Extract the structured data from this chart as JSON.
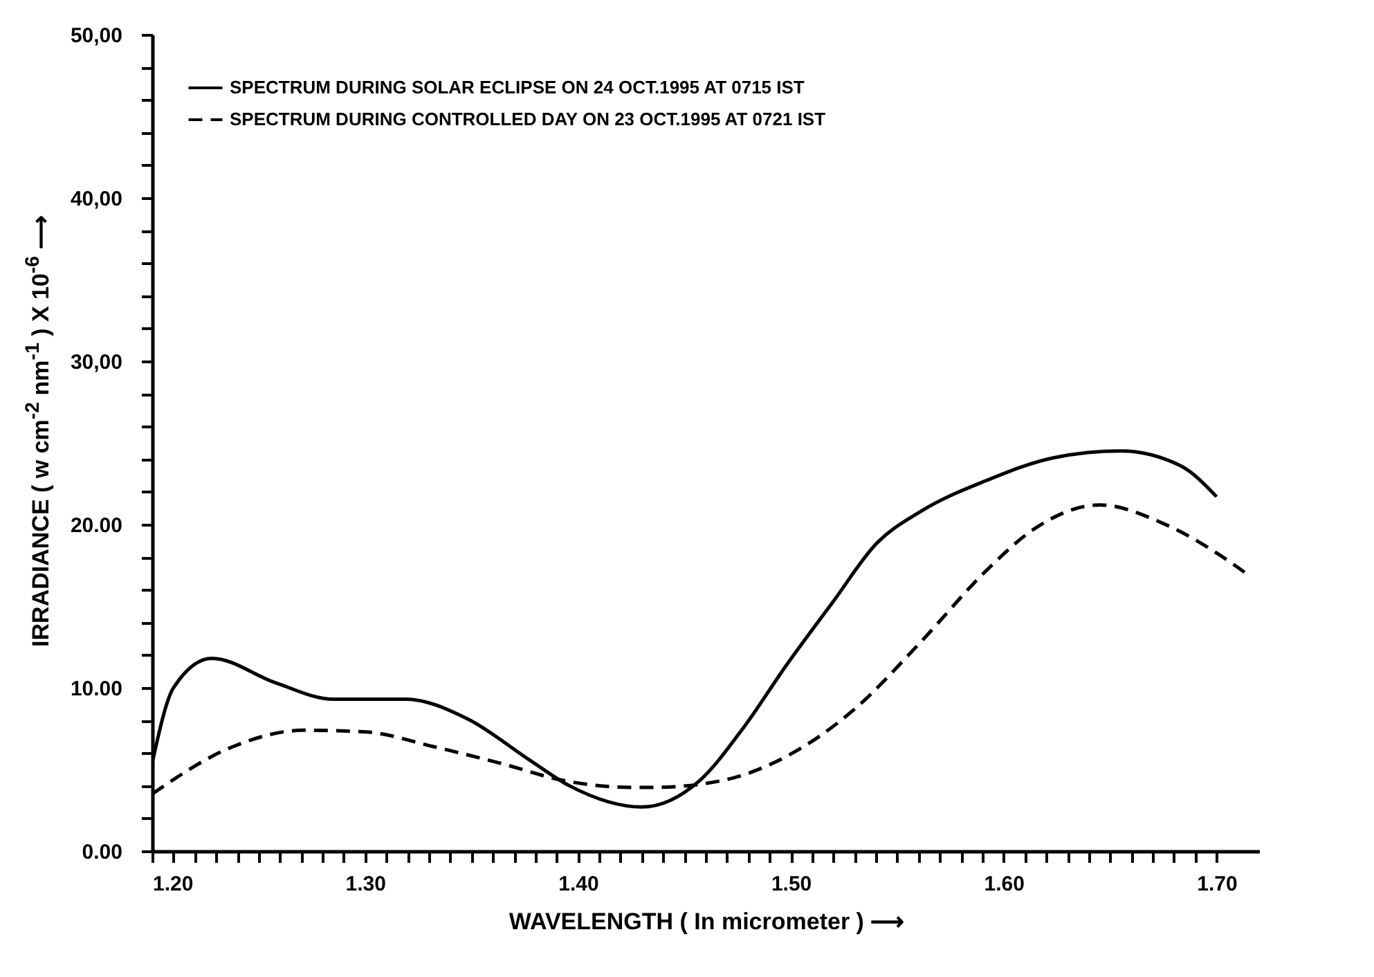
{
  "chart_data": {
    "type": "line",
    "xlabel": "WAVELENGTH ( In micrometer ) ⟶",
    "ylabel": "IRRADIANCE ( w cm$^{-2}$ nm$^{-1}$ ) X 10$^{-6}$ ⟶",
    "xlim": [
      1.2,
      1.72
    ],
    "ylim": [
      0,
      50
    ],
    "xticks": [
      {
        "value": 1.2,
        "label": "1.20"
      },
      {
        "value": 1.21,
        "label": null
      },
      {
        "value": 1.22,
        "label": null
      },
      {
        "value": 1.23,
        "label": null
      },
      {
        "value": 1.24,
        "label": null
      },
      {
        "value": 1.25,
        "label": null
      },
      {
        "value": 1.26,
        "label": null
      },
      {
        "value": 1.27,
        "label": null
      },
      {
        "value": 1.28,
        "label": null
      },
      {
        "value": 1.29,
        "label": null
      },
      {
        "value": 1.3,
        "label": "1.30"
      },
      {
        "value": 1.31,
        "label": null
      },
      {
        "value": 1.32,
        "label": null
      },
      {
        "value": 1.33,
        "label": null
      },
      {
        "value": 1.34,
        "label": null
      },
      {
        "value": 1.35,
        "label": null
      },
      {
        "value": 1.36,
        "label": null
      },
      {
        "value": 1.37,
        "label": null
      },
      {
        "value": 1.38,
        "label": null
      },
      {
        "value": 1.39,
        "label": null
      },
      {
        "value": 1.4,
        "label": "1.40"
      },
      {
        "value": 1.41,
        "label": null
      },
      {
        "value": 1.42,
        "label": null
      },
      {
        "value": 1.43,
        "label": null
      },
      {
        "value": 1.44,
        "label": null
      },
      {
        "value": 1.45,
        "label": null
      },
      {
        "value": 1.46,
        "label": null
      },
      {
        "value": 1.47,
        "label": null
      },
      {
        "value": 1.48,
        "label": null
      },
      {
        "value": 1.49,
        "label": null
      },
      {
        "value": 1.5,
        "label": "1.50"
      },
      {
        "value": 1.51,
        "label": null
      },
      {
        "value": 1.52,
        "label": null
      },
      {
        "value": 1.53,
        "label": null
      },
      {
        "value": 1.54,
        "label": null
      },
      {
        "value": 1.55,
        "label": null
      },
      {
        "value": 1.56,
        "label": null
      },
      {
        "value": 1.57,
        "label": null
      },
      {
        "value": 1.58,
        "label": null
      },
      {
        "value": 1.59,
        "label": null
      },
      {
        "value": 1.6,
        "label": "1.60"
      },
      {
        "value": 1.61,
        "label": null
      },
      {
        "value": 1.62,
        "label": null
      },
      {
        "value": 1.63,
        "label": null
      },
      {
        "value": 1.64,
        "label": null
      },
      {
        "value": 1.65,
        "label": null
      },
      {
        "value": 1.66,
        "label": null
      },
      {
        "value": 1.67,
        "label": null
      },
      {
        "value": 1.68,
        "label": null
      },
      {
        "value": 1.69,
        "label": null
      },
      {
        "value": 1.7,
        "label": "1.70"
      }
    ],
    "yticks": [
      {
        "value": 0,
        "label": "0.00"
      },
      {
        "value": 2,
        "label": null
      },
      {
        "value": 4,
        "label": null
      },
      {
        "value": 6,
        "label": null
      },
      {
        "value": 8,
        "label": null
      },
      {
        "value": 10,
        "label": "10.00"
      },
      {
        "value": 12,
        "label": null
      },
      {
        "value": 14,
        "label": null
      },
      {
        "value": 16,
        "label": null
      },
      {
        "value": 18,
        "label": null
      },
      {
        "value": 20,
        "label": "20.00"
      },
      {
        "value": 22,
        "label": null
      },
      {
        "value": 24,
        "label": null
      },
      {
        "value": 26,
        "label": null
      },
      {
        "value": 28,
        "label": null
      },
      {
        "value": 30,
        "label": "30,00"
      },
      {
        "value": 32,
        "label": null
      },
      {
        "value": 34,
        "label": null
      },
      {
        "value": 36,
        "label": null
      },
      {
        "value": 38,
        "label": null
      },
      {
        "value": 40,
        "label": "40,00"
      },
      {
        "value": 42,
        "label": null
      },
      {
        "value": 44,
        "label": null
      },
      {
        "value": 46,
        "label": null
      },
      {
        "value": 48,
        "label": null
      },
      {
        "value": 50,
        "label": "50,00"
      }
    ],
    "grid": false,
    "legend": "top left",
    "marker": "none",
    "series": [
      {
        "name": "SPECTRUM DURING SOLAR ECLIPSE ON 24 OCT.1995 AT 0715 IST",
        "color": "#000000",
        "line_style": "solid",
        "x": [
          1.2,
          1.21,
          1.228,
          1.258,
          1.285,
          1.319,
          1.348,
          1.377,
          1.396,
          1.43,
          1.457,
          1.478,
          1.498,
          1.52,
          1.54,
          1.561,
          1.592,
          1.624,
          1.655,
          1.683,
          1.7
        ],
        "values": [
          5.4,
          10.0,
          11.8,
          10.3,
          9.3,
          9.3,
          8.1,
          5.6,
          4.0,
          2.7,
          4.3,
          7.6,
          11.4,
          15.3,
          18.8,
          20.8,
          22.7,
          24.1,
          24.5,
          23.6,
          21.7
        ]
      },
      {
        "name": "SPECTRUM DURING CONTROLLED DAY ON 23 OCT.1995 AT 0721 IST",
        "color": "#000000",
        "line_style": "dashed",
        "x": [
          1.2,
          1.238,
          1.271,
          1.3,
          1.332,
          1.363,
          1.394,
          1.426,
          1.436,
          1.467,
          1.498,
          1.53,
          1.561,
          1.592,
          1.614,
          1.645,
          1.676,
          1.703,
          1.715
        ],
        "values": [
          3.5,
          6.4,
          7.4,
          7.3,
          6.4,
          5.4,
          4.3,
          3.9,
          3.9,
          4.3,
          5.8,
          8.7,
          12.8,
          17.2,
          19.7,
          21.2,
          20.0,
          18.0,
          16.9
        ]
      }
    ]
  }
}
